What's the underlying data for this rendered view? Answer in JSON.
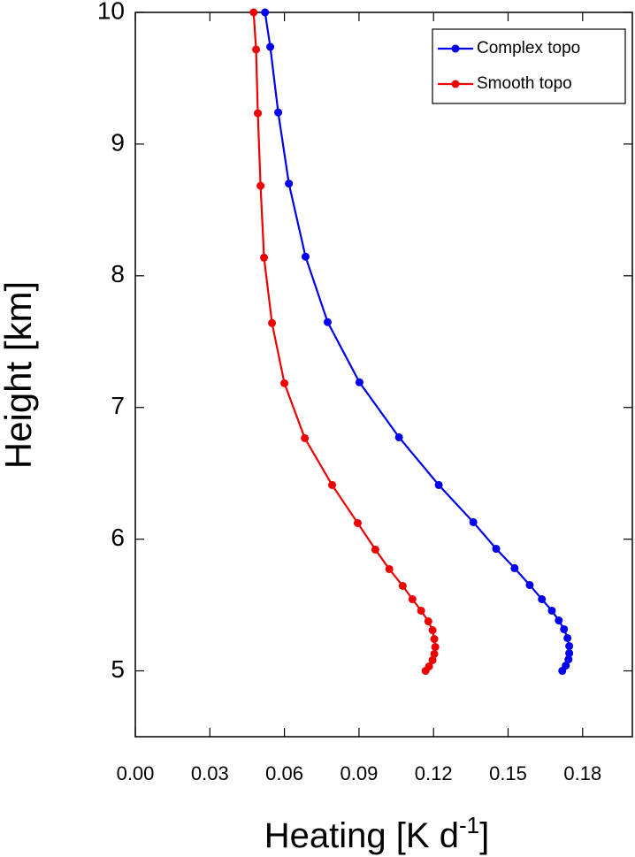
{
  "chart_data": {
    "type": "line",
    "xlabel": [
      "Heating [K d",
      "-1",
      "]"
    ],
    "ylabel": "Height [km]",
    "xlim": [
      0,
      0.2
    ],
    "ylim": [
      4.5,
      10
    ],
    "xticks": [
      {
        "value": 0,
        "label": "0.00"
      },
      0.03,
      0.06,
      0.09,
      0.12,
      0.15,
      0.18
    ],
    "yticks": [
      5,
      6,
      7,
      8,
      9,
      10
    ],
    "legend": "upper right",
    "series": [
      {
        "name": "Complex topo",
        "color": "#0000ee",
        "x": [
          0.0522,
          0.0543,
          0.0575,
          0.0618,
          0.0685,
          0.0774,
          0.0902,
          0.1061,
          0.1221,
          0.136,
          0.1452,
          0.1526,
          0.1587,
          0.1636,
          0.1676,
          0.1704,
          0.1725,
          0.1739,
          0.1746,
          0.1746,
          0.1743,
          0.1732,
          0.1718
        ],
        "y": [
          10,
          9.738,
          9.24,
          8.7,
          8.145,
          7.648,
          7.191,
          6.774,
          6.411,
          6.129,
          5.927,
          5.78,
          5.652,
          5.544,
          5.457,
          5.383,
          5.316,
          5.249,
          5.188,
          5.134,
          5.087,
          5.04,
          5.0
        ]
      },
      {
        "name": "Smooth topo",
        "color": "#ee0000",
        "x": [
          0.0476,
          0.0486,
          0.0493,
          0.0504,
          0.0518,
          0.055,
          0.06,
          0.0682,
          0.0792,
          0.0895,
          0.0966,
          0.1022,
          0.1076,
          0.1115,
          0.115,
          0.1179,
          0.1196,
          0.1203,
          0.1207,
          0.1203,
          0.1196,
          0.1182,
          0.1168
        ],
        "y": [
          10,
          9.718,
          9.234,
          8.683,
          8.138,
          7.641,
          7.184,
          6.767,
          6.411,
          6.122,
          5.921,
          5.773,
          5.645,
          5.544,
          5.457,
          5.376,
          5.309,
          5.242,
          5.181,
          5.128,
          5.081,
          5.034,
          5.0
        ]
      }
    ]
  }
}
